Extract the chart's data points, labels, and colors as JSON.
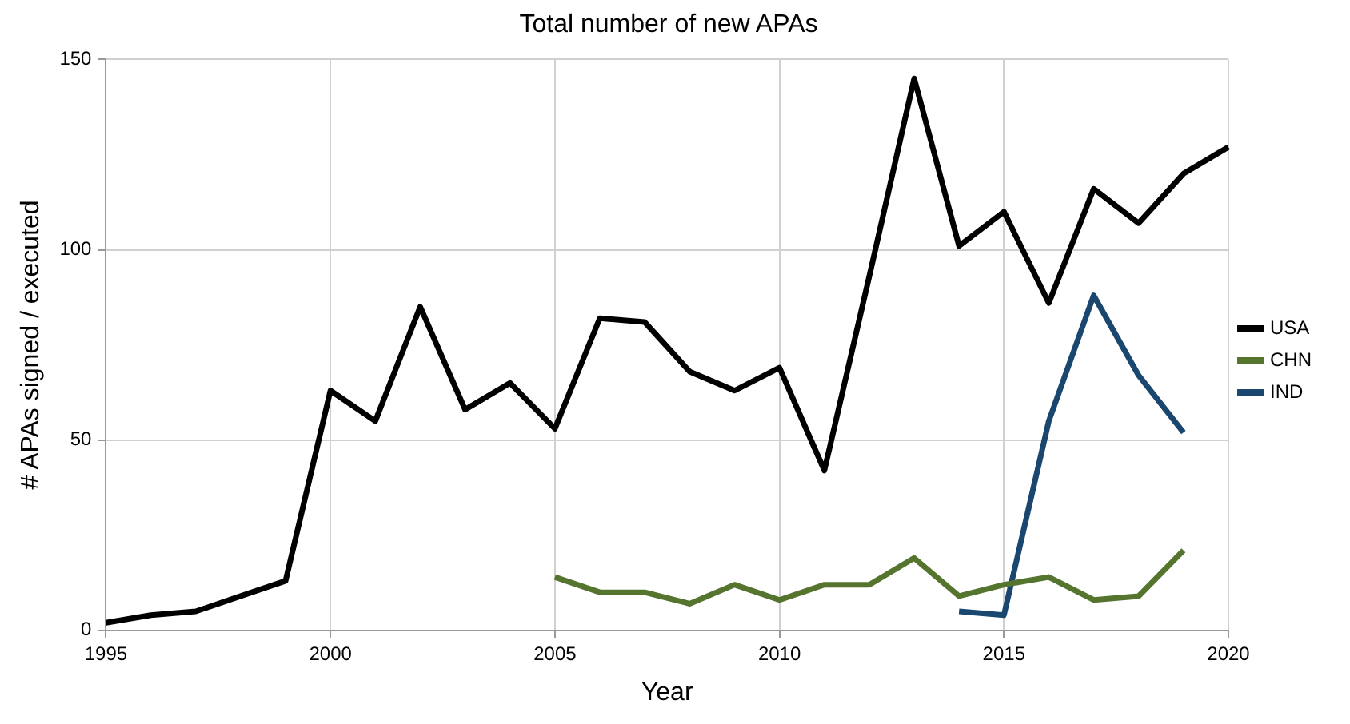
{
  "chart_data": {
    "type": "line",
    "title": "Total number of new APAs",
    "xlabel": "Year",
    "ylabel": "# APAs signed / executed",
    "xlim": [
      1995,
      2020
    ],
    "xticks": [
      1995,
      2000,
      2005,
      2010,
      2015,
      2020
    ],
    "ylim": [
      0,
      150
    ],
    "yticks": [
      0,
      50,
      100,
      150
    ],
    "grid": true,
    "legend": "right",
    "marker": "none",
    "line_style": "solid",
    "series": [
      {
        "name": "USA",
        "color": "#000000",
        "x": [
          1995,
          1996,
          1997,
          1998,
          1999,
          2000,
          2001,
          2002,
          2003,
          2004,
          2005,
          2006,
          2007,
          2008,
          2009,
          2010,
          2011,
          2012,
          2013,
          2014,
          2015,
          2016,
          2017,
          2018,
          2019,
          2020
        ],
        "values": [
          2,
          4,
          5,
          9,
          13,
          63,
          55,
          85,
          58,
          65,
          53,
          82,
          81,
          68,
          63,
          69,
          42,
          93,
          145,
          101,
          110,
          86,
          116,
          107,
          120,
          127
        ]
      },
      {
        "name": "CHN",
        "color": "#55752f",
        "x": [
          2005,
          2006,
          2007,
          2008,
          2009,
          2010,
          2011,
          2012,
          2013,
          2014,
          2015,
          2016,
          2017,
          2018,
          2019
        ],
        "values": [
          14,
          10,
          10,
          7,
          12,
          8,
          12,
          12,
          19,
          9,
          12,
          14,
          8,
          9,
          21
        ]
      },
      {
        "name": "IND",
        "color": "#1a476f",
        "x": [
          2014,
          2015,
          2016,
          2017,
          2018,
          2019
        ],
        "values": [
          5,
          4,
          55,
          88,
          67,
          52
        ]
      }
    ]
  }
}
